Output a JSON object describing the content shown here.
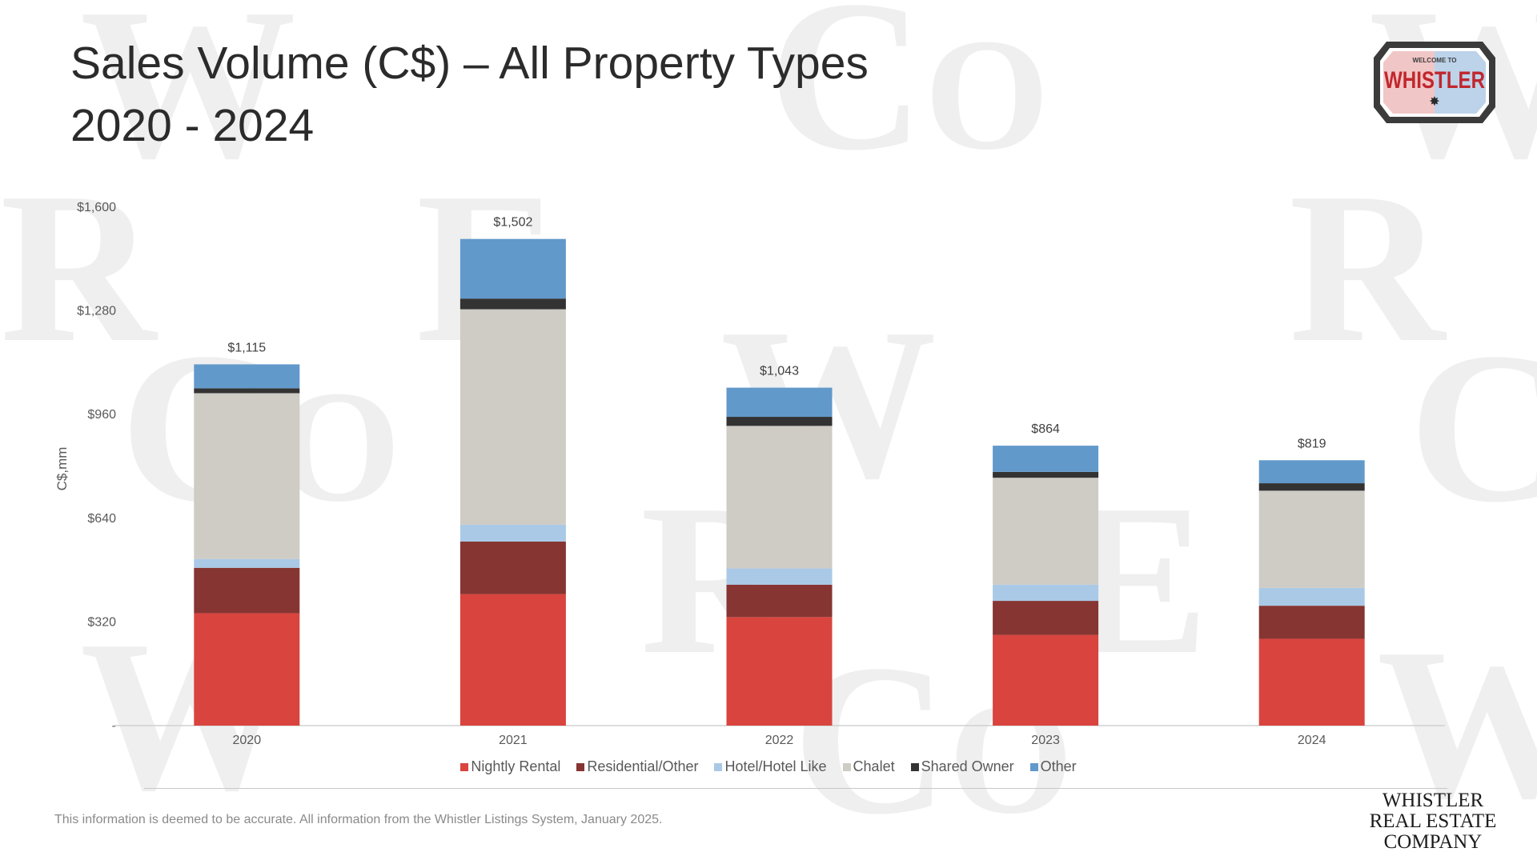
{
  "title": {
    "line1": "Sales Volume (C$) – All Property Types",
    "line2": "2020 - 2024"
  },
  "logo": {
    "top_text": "WELCOME TO",
    "main_text": "WHISTLER",
    "colors": {
      "outer": "#3b3b3b",
      "inner_left": "#f1c6c6",
      "inner_right": "#bcd3ea",
      "text": "#c0272d"
    }
  },
  "chart_data": {
    "type": "bar",
    "stacked": true,
    "categories": [
      "2020",
      "2021",
      "2022",
      "2023",
      "2024"
    ],
    "ylabel": "C$,mm",
    "ylim": [
      0,
      1600
    ],
    "yticks": [
      0,
      320,
      640,
      960,
      1280,
      1600
    ],
    "ytick_labels": [
      "-",
      "$320",
      "$640",
      "$960",
      "$1,280",
      "$1,600"
    ],
    "grid": false,
    "legend_position": "bottom",
    "series": [
      {
        "name": "Nightly Rental",
        "color": "#d9443f",
        "values": [
          347,
          406,
          335,
          280,
          268
        ]
      },
      {
        "name": "Residential/Other",
        "color": "#863532",
        "values": [
          140,
          162,
          100,
          105,
          102
        ]
      },
      {
        "name": "Hotel/Hotel Like",
        "color": "#a9c9e6",
        "values": [
          27,
          52,
          50,
          50,
          55
        ]
      },
      {
        "name": "Chalet",
        "color": "#cfcbc5",
        "values": [
          512,
          665,
          440,
          330,
          300
        ]
      },
      {
        "name": "Shared Owner",
        "color": "#333333",
        "values": [
          15,
          33,
          28,
          18,
          23
        ]
      },
      {
        "name": "Other",
        "color": "#6299cb",
        "values": [
          74,
          184,
          90,
          81,
          71
        ]
      }
    ],
    "totals": [
      1115,
      1502,
      1043,
      864,
      819
    ],
    "total_labels": [
      "$1,115",
      "$1,502",
      "$1,043",
      "$864",
      "$819"
    ]
  },
  "footnote": "This information is deemed to be accurate. All information from the Whistler Listings System, January 2025.",
  "company": {
    "line1": "WHISTLER",
    "line2": "REAL ESTATE",
    "line3": "COMPANY"
  }
}
